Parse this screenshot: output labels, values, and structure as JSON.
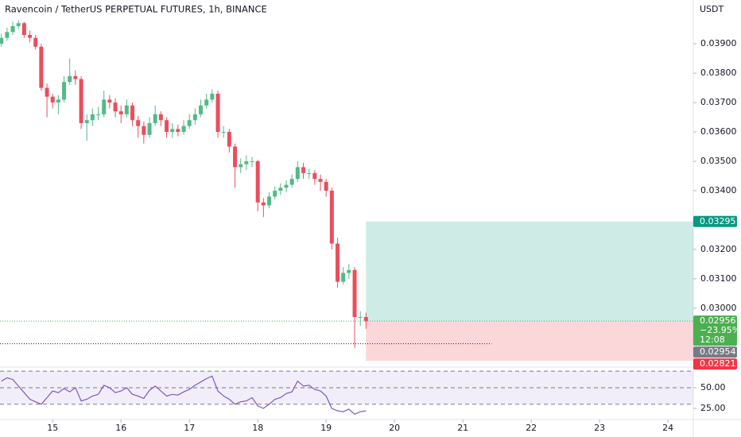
{
  "chart_data": {
    "type": "candlestick",
    "title": "Ravencoin / TetherUS PERPETUAL FUTURES, 1h, BINANCE",
    "y_axis_label": "USDT",
    "x": [
      14.25,
      14.333,
      14.417,
      14.5,
      14.583,
      14.667,
      14.75,
      14.833,
      14.917,
      15,
      15.083,
      15.167,
      15.25,
      15.333,
      15.417,
      15.5,
      15.583,
      15.667,
      15.75,
      15.833,
      15.917,
      16,
      16.083,
      16.167,
      16.25,
      16.333,
      16.417,
      16.5,
      16.583,
      16.667,
      16.75,
      16.833,
      16.917,
      17,
      17.083,
      17.167,
      17.25,
      17.333,
      17.417,
      17.5,
      17.583,
      17.667,
      17.75,
      17.833,
      17.917,
      18,
      18.083,
      18.167,
      18.25,
      18.333,
      18.417,
      18.5,
      18.583,
      18.667,
      18.75,
      18.833,
      18.917,
      19,
      19.083,
      19.167,
      19.25,
      19.333,
      19.417,
      19.5,
      19.583
    ],
    "open": [
      0.039,
      0.0392,
      0.0394,
      0.0396,
      0.0397,
      0.0393,
      0.0392,
      0.0389,
      0.0375,
      0.0372,
      0.037,
      0.0371,
      0.0377,
      0.0379,
      0.0378,
      0.0363,
      0.0364,
      0.0366,
      0.0366,
      0.0371,
      0.037,
      0.0367,
      0.0366,
      0.0369,
      0.0364,
      0.0362,
      0.0359,
      0.0363,
      0.0366,
      0.0364,
      0.036,
      0.0361,
      0.036,
      0.0362,
      0.0364,
      0.0366,
      0.0369,
      0.0371,
      0.0373,
      0.036,
      0.036,
      0.0355,
      0.0348,
      0.0349,
      0.035,
      0.035,
      0.0336,
      0.0335,
      0.0338,
      0.034,
      0.0341,
      0.0342,
      0.0344,
      0.0348,
      0.0346,
      0.0346,
      0.0344,
      0.0343,
      0.034,
      0.0322,
      0.0309,
      0.0312,
      0.0313,
      0.0297,
      0.0297
    ],
    "high": [
      0.03935,
      0.03955,
      0.03975,
      0.0398,
      0.03975,
      0.03945,
      0.0393,
      0.039,
      0.03765,
      0.0373,
      0.03725,
      0.0379,
      0.0385,
      0.0381,
      0.0379,
      0.0366,
      0.0368,
      0.03685,
      0.0374,
      0.03725,
      0.03715,
      0.0369,
      0.0371,
      0.037,
      0.03655,
      0.03635,
      0.0365,
      0.0369,
      0.0367,
      0.0365,
      0.0363,
      0.03625,
      0.0364,
      0.0366,
      0.0368,
      0.0371,
      0.0373,
      0.03745,
      0.0374,
      0.0362,
      0.0361,
      0.0356,
      0.0351,
      0.0352,
      0.03515,
      0.03505,
      0.03375,
      0.03395,
      0.03415,
      0.03425,
      0.03435,
      0.03455,
      0.035,
      0.03495,
      0.03475,
      0.0347,
      0.03455,
      0.0344,
      0.0341,
      0.0324,
      0.0314,
      0.0315,
      0.0314,
      0.0299,
      0.02985
    ],
    "low": [
      0.0389,
      0.0391,
      0.0393,
      0.0395,
      0.0392,
      0.03905,
      0.0388,
      0.0374,
      0.0365,
      0.0368,
      0.0366,
      0.037,
      0.0376,
      0.0376,
      0.0361,
      0.0357,
      0.0362,
      0.0364,
      0.0365,
      0.0368,
      0.0365,
      0.0363,
      0.0365,
      0.0362,
      0.0358,
      0.0356,
      0.0358,
      0.0362,
      0.0362,
      0.0358,
      0.0358,
      0.03585,
      0.0359,
      0.0361,
      0.03625,
      0.0365,
      0.0368,
      0.037,
      0.0358,
      0.0358,
      0.0353,
      0.0341,
      0.0346,
      0.0347,
      0.0348,
      0.0333,
      0.0331,
      0.0334,
      0.0337,
      0.03385,
      0.03395,
      0.0341,
      0.0343,
      0.0344,
      0.0344,
      0.0342,
      0.034,
      0.0338,
      0.032,
      0.0307,
      0.0308,
      0.031,
      0.02865,
      0.0294,
      0.0293
    ],
    "close": [
      0.0392,
      0.0394,
      0.0396,
      0.0397,
      0.0393,
      0.0392,
      0.0389,
      0.0375,
      0.0372,
      0.037,
      0.0371,
      0.0377,
      0.0379,
      0.0378,
      0.0363,
      0.0364,
      0.0366,
      0.0366,
      0.0371,
      0.037,
      0.0367,
      0.0366,
      0.0369,
      0.0364,
      0.0362,
      0.0359,
      0.0363,
      0.0366,
      0.0364,
      0.036,
      0.0361,
      0.036,
      0.0362,
      0.0364,
      0.0366,
      0.0369,
      0.0371,
      0.0373,
      0.036,
      0.036,
      0.0355,
      0.0348,
      0.0349,
      0.035,
      0.035,
      0.0336,
      0.0335,
      0.0338,
      0.034,
      0.0341,
      0.0342,
      0.0344,
      0.0348,
      0.0346,
      0.0346,
      0.0344,
      0.0343,
      0.034,
      0.0322,
      0.0309,
      0.0312,
      0.0313,
      0.0297,
      0.0297,
      0.02956
    ],
    "up_color": "#53b987",
    "down_color": "#eb4d5c",
    "xlim": [
      14.23,
      24.37
    ],
    "xticks": [
      15,
      16,
      17,
      18,
      19,
      20,
      21,
      22,
      23,
      24
    ],
    "ylim": [
      0.02805,
      0.04049
    ],
    "yticks": [
      {
        "value": 0.03,
        "label": "0.03000"
      },
      {
        "value": 0.031,
        "label": "0.03100"
      },
      {
        "value": 0.032,
        "label": "0.03200"
      },
      {
        "value": 0.033,
        "label": "0.03300"
      },
      {
        "value": 0.034,
        "label": "0.03400"
      },
      {
        "value": 0.035,
        "label": "0.03500"
      },
      {
        "value": 0.036,
        "label": "0.03600"
      },
      {
        "value": 0.037,
        "label": "0.03700"
      },
      {
        "value": 0.038,
        "label": "0.03800"
      },
      {
        "value": 0.039,
        "label": "0.03900"
      }
    ],
    "position": {
      "target": 0.03295,
      "entry": 0.02956,
      "stop": 0.02821,
      "x_start": 19.583
    },
    "hline": {
      "value": 0.02879,
      "x_end": 21.42
    },
    "price_labels": [
      {
        "value": 0.03295,
        "color": "#089981"
      },
      {
        "value": 0.02956,
        "color": "#4caf50",
        "lines": [
          "−23.95%",
          "12:08"
        ]
      },
      {
        "value": 0.02954,
        "color": "#787b86"
      },
      {
        "value": 0.02821,
        "color": "#f23645"
      }
    ],
    "rsi": {
      "values": [
        58,
        62,
        60,
        52,
        44,
        36,
        33,
        30,
        38,
        46,
        44,
        49,
        45,
        50,
        34,
        36,
        40,
        42,
        53,
        50,
        44,
        46,
        50,
        42,
        40,
        37,
        47,
        52,
        46,
        40,
        42,
        41,
        45,
        48,
        53,
        57,
        61,
        64,
        46,
        40,
        36,
        30,
        33,
        34,
        38,
        28,
        25,
        30,
        36,
        38,
        43,
        45,
        58,
        52,
        53,
        48,
        46,
        40,
        25,
        22,
        21,
        24,
        18,
        21,
        22
      ],
      "color": "#7e57c2",
      "ylim": [
        12.5,
        74
      ],
      "levels": [
        30,
        50,
        70
      ],
      "yticks": [
        {
          "value": 25,
          "label": "25.00"
        },
        {
          "value": 50,
          "label": "50.00"
        }
      ]
    }
  }
}
